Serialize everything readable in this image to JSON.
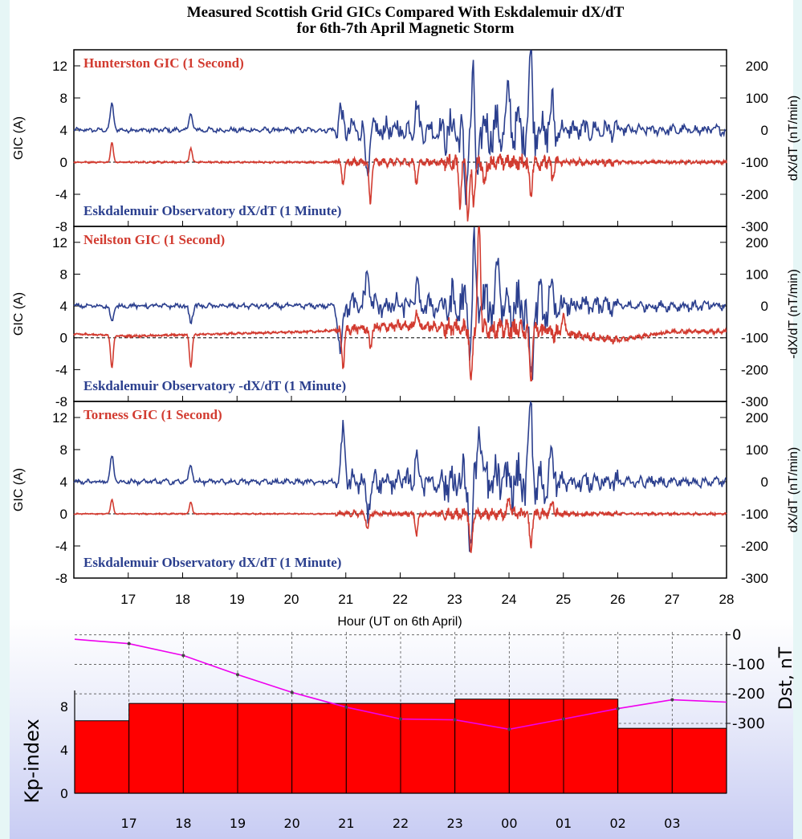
{
  "title": [
    "Measured Scottish Grid GICs Compared With Eskdalemuir dX/dT",
    "for 6th-7th April Magnetic Storm"
  ],
  "colors": {
    "gic": "#d23b30",
    "dxdt": "#2b3f8e",
    "dst": "#ee00ee",
    "kp": "#ff0000"
  },
  "chart_data": [
    {
      "type": "line",
      "panel_label_gic": "Hunterston GIC (1 Second)",
      "panel_label_dxdt": "Eskdalemuir Observatory dX/dT (1 Minute)",
      "ylabel_left": "GIC (A)",
      "ylabel_right": "dX/dT (nT/min)",
      "ylim_left": [
        -8,
        14
      ],
      "ylim_right": [
        -300,
        250
      ],
      "yticks_left": [
        "12",
        "8",
        "4",
        "0",
        "-4",
        "-8"
      ],
      "yticks_right": [
        "200",
        "100",
        "0",
        "-100",
        "-200",
        "-300"
      ],
      "xlim": [
        16,
        28
      ],
      "series": [
        {
          "name": "Hunterston GIC (1 Second)",
          "x": [
            16.7,
            18.15,
            20.95,
            21.45,
            22.3,
            23.1,
            23.25,
            23.35,
            23.55,
            24.4,
            24.8
          ],
          "y": [
            2.5,
            1.8,
            -2.5,
            -5.0,
            -2.5,
            -5.0,
            -7.0,
            -5.0,
            -3.0,
            -4.0,
            -2.0
          ]
        },
        {
          "name": "Eskdalemuir Observatory dX/dT (1 Minute)",
          "x": [
            16.7,
            18.15,
            20.9,
            21.4,
            22.3,
            23.2,
            23.35,
            23.4,
            24.0,
            24.4,
            24.8
          ],
          "y": [
            80,
            50,
            60,
            -150,
            80,
            -200,
            180,
            -200,
            100,
            230,
            60
          ]
        }
      ]
    },
    {
      "type": "line",
      "panel_label_gic": "Neilston GIC (1 Second)",
      "panel_label_dxdt": "Eskdalemuir Observatory -dX/dT (1 Minute)",
      "ylabel_left": "GIC (A)",
      "ylabel_right": "-dX/dT (nT/min)",
      "ylim_left": [
        -8,
        14
      ],
      "ylim_right": [
        -300,
        250
      ],
      "yticks_left": [
        "12",
        "8",
        "4",
        "0",
        "-4",
        "-8"
      ],
      "yticks_right": [
        "200",
        "100",
        "0",
        "-100",
        "-200",
        "-300"
      ],
      "xlim": [
        16,
        28
      ],
      "series": [
        {
          "name": "Neilston GIC (1 Second)",
          "x": [
            16.7,
            18.15,
            20.95,
            21.45,
            22.3,
            23.3,
            23.45,
            24.4,
            25.0
          ],
          "y": [
            -4.0,
            -4.0,
            -4.5,
            -2.5,
            2.0,
            -6.5,
            14.0,
            -6.5,
            2.5
          ]
        },
        {
          "name": "Eskdalemuir Observatory -dX/dT (1 Minute)",
          "x": [
            16.7,
            18.15,
            20.9,
            21.4,
            22.3,
            23.3,
            23.35,
            23.8,
            24.4
          ],
          "y": [
            -50,
            -50,
            -150,
            120,
            60,
            -200,
            250,
            150,
            -280
          ]
        }
      ]
    },
    {
      "type": "line",
      "panel_label_gic": "Torness GIC (1 Second)",
      "panel_label_dxdt": "Eskdalemuir Observatory dX/dT (1 Minute)",
      "ylabel_left": "GIC (A)",
      "ylabel_right": "dX/dT (nT/min)",
      "ylim_left": [
        -8,
        14
      ],
      "ylim_right": [
        -300,
        250
      ],
      "yticks_left": [
        "12",
        "8",
        "4",
        "0",
        "-4",
        "-8"
      ],
      "yticks_right": [
        "200",
        "100",
        "0",
        "-100",
        "-200",
        "-300"
      ],
      "xlim": [
        16,
        28
      ],
      "xticks": [
        "17",
        "18",
        "19",
        "20",
        "21",
        "22",
        "23",
        "24",
        "25",
        "26",
        "27",
        "28"
      ],
      "xlabel": "Hour (UT on 6th April)",
      "series": [
        {
          "name": "Torness GIC (1 Second)",
          "x": [
            16.7,
            18.15,
            21.4,
            22.3,
            23.3,
            24.0,
            24.4,
            24.8
          ],
          "y": [
            1.8,
            1.5,
            -2.0,
            -2.5,
            -5.0,
            2.0,
            -4.0,
            1.5
          ]
        },
        {
          "name": "Eskdalemuir Observatory dX/dT (1 Minute)",
          "x": [
            16.7,
            18.15,
            20.95,
            21.4,
            22.3,
            23.3,
            23.45,
            24.4,
            24.8
          ],
          "y": [
            80,
            50,
            160,
            -100,
            80,
            -200,
            180,
            230,
            60
          ]
        }
      ]
    },
    {
      "type": "bar",
      "ylabel": "Kp-index",
      "ylim": [
        0,
        9.5
      ],
      "yticks": [
        "0",
        "4",
        "8"
      ],
      "categories": [
        "16",
        "17",
        "18",
        "19",
        "20",
        "21",
        "22",
        "23",
        "00",
        "01",
        "02",
        "03"
      ],
      "xticks": [
        "17",
        "18",
        "19",
        "20",
        "21",
        "22",
        "23",
        "00",
        "01",
        "02",
        "03"
      ],
      "bar_blocks": [
        {
          "start": 16,
          "end": 17,
          "value": 6.7
        },
        {
          "start": 17,
          "end": 23,
          "value": 8.3
        },
        {
          "start": 23,
          "end": 26,
          "value": 8.7
        },
        {
          "start": 26,
          "end": 28,
          "value": 6.0
        }
      ]
    },
    {
      "type": "line",
      "ylabel": "Dst, nT",
      "ylim": [
        -330,
        10
      ],
      "yticks": [
        "0",
        "-100",
        "-200",
        "-300"
      ],
      "x": [
        16,
        17,
        18,
        19,
        20,
        21,
        22,
        23,
        24,
        25,
        26,
        27,
        28
      ],
      "values": [
        -15,
        -30,
        -70,
        -135,
        -195,
        -245,
        -285,
        -288,
        -320,
        -285,
        -250,
        -220,
        -228
      ]
    }
  ]
}
